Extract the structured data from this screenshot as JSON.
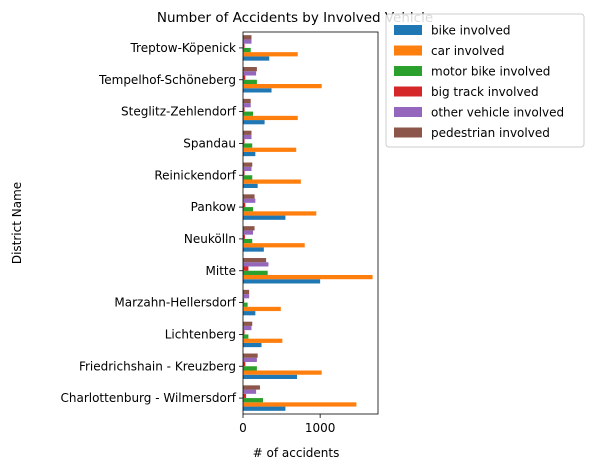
{
  "chart_data": {
    "type": "bar",
    "orientation": "horizontal",
    "title": "Number of Accidents by Involved Vehicle",
    "xlabel": "# of accidents",
    "ylabel": "District Name",
    "xlim": [
      0,
      1750
    ],
    "xticks": [
      0,
      1000
    ],
    "grid": false,
    "legend_position": "outside-upper-right",
    "categories": [
      "Charlottenburg - Wilmersdorf",
      "Friedrichshain - Kreuzberg",
      "Lichtenberg",
      "Marzahn-Hellersdorf",
      "Mitte",
      "Neukölln",
      "Pankow",
      "Reinickendorf",
      "Spandau",
      "Steglitz-Zehlendorf",
      "Tempelhof-Schöneberg",
      "Treptow-Köpenick"
    ],
    "series": [
      {
        "name": "bike involved",
        "color": "#1f77b4",
        "values": [
          550,
          700,
          240,
          160,
          1000,
          270,
          550,
          190,
          160,
          280,
          370,
          340
        ]
      },
      {
        "name": "car involved",
        "color": "#ff7f0e",
        "values": [
          1470,
          1020,
          510,
          490,
          1680,
          800,
          950,
          750,
          690,
          710,
          1020,
          710
        ]
      },
      {
        "name": "motor bike involved",
        "color": "#2ca02c",
        "values": [
          260,
          180,
          70,
          60,
          320,
          120,
          130,
          120,
          120,
          130,
          180,
          100
        ]
      },
      {
        "name": "big track involved",
        "color": "#d62728",
        "values": [
          40,
          30,
          20,
          15,
          70,
          25,
          30,
          20,
          20,
          20,
          30,
          20
        ]
      },
      {
        "name": "other vehicle involved",
        "color": "#9467bd",
        "values": [
          170,
          180,
          110,
          80,
          330,
          130,
          160,
          110,
          110,
          100,
          170,
          110
        ]
      },
      {
        "name": "pedestrian involved",
        "color": "#8c564b",
        "values": [
          220,
          190,
          120,
          80,
          300,
          150,
          150,
          120,
          110,
          100,
          180,
          110
        ]
      }
    ]
  }
}
